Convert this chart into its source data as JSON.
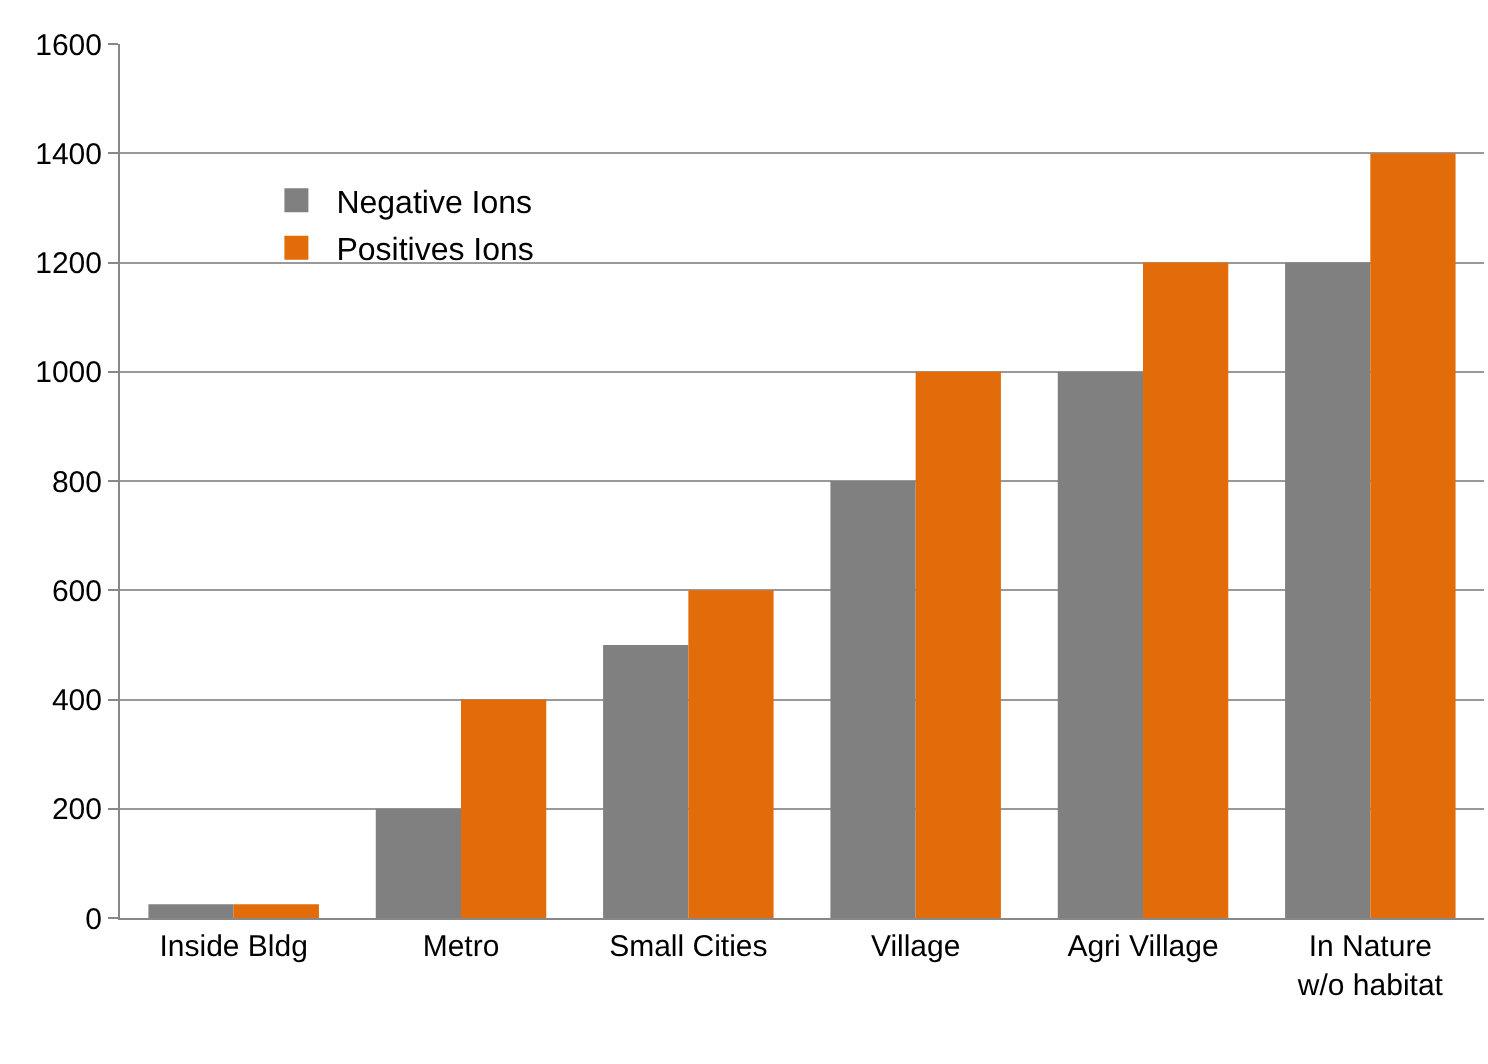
{
  "chart_data": {
    "type": "bar",
    "categories": [
      "Inside Bldg",
      "Metro",
      "Small Cities",
      "Village",
      "Agri Village",
      "In Nature\nw/o habitat"
    ],
    "series": [
      {
        "name": "Negative Ions",
        "color": "#808080",
        "values": [
          25,
          200,
          500,
          800,
          1000,
          1200
        ]
      },
      {
        "name": "Positives Ions",
        "color": "#e36c0a",
        "values": [
          25,
          400,
          600,
          1000,
          1200,
          1400
        ]
      }
    ],
    "ylim": [
      0,
      1600
    ],
    "yticks": [
      0,
      200,
      400,
      600,
      800,
      1000,
      1200,
      1400,
      1600
    ],
    "grid": "y",
    "legend": "top left"
  }
}
